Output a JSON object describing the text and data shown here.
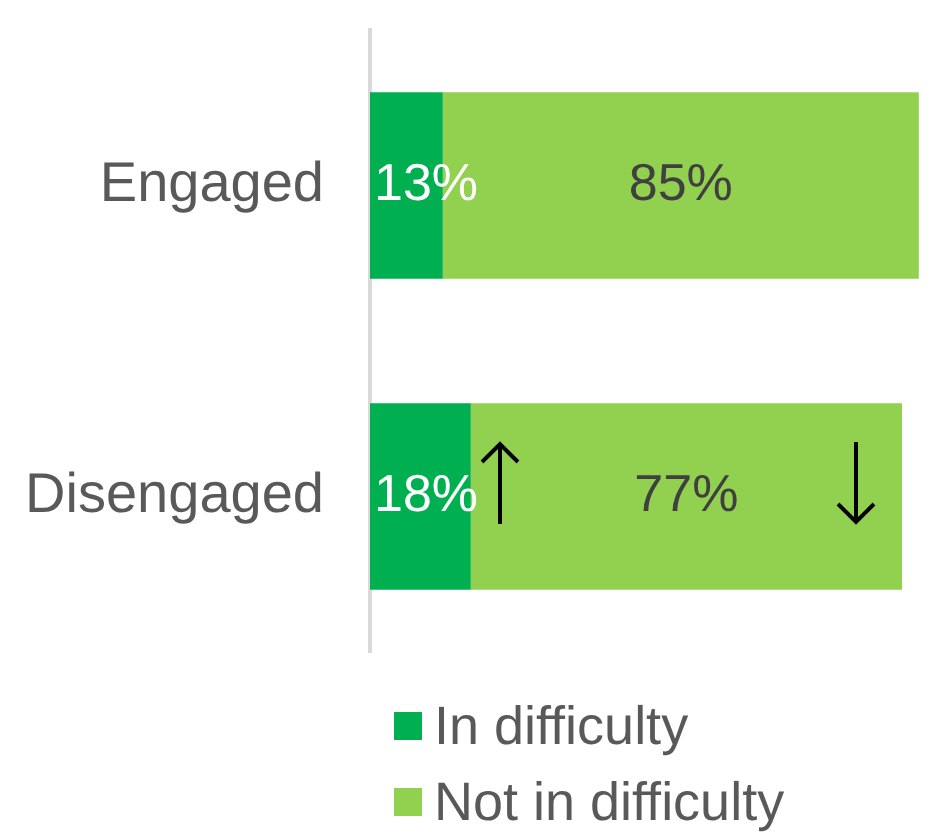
{
  "chart_data": {
    "type": "bar",
    "orientation": "horizontal",
    "stacked": true,
    "categories": [
      "Engaged",
      "Disengaged"
    ],
    "series": [
      {
        "name": "In difficulty",
        "color": "#00b050",
        "values": [
          13,
          18
        ],
        "value_labels": [
          "13%",
          "18%"
        ]
      },
      {
        "name": "Not in difficulty",
        "color": "#92d050",
        "values": [
          85,
          77
        ],
        "value_labels": [
          "85%",
          "77%"
        ]
      }
    ],
    "legend": "bottom",
    "tick_labels": "y"
  }
}
